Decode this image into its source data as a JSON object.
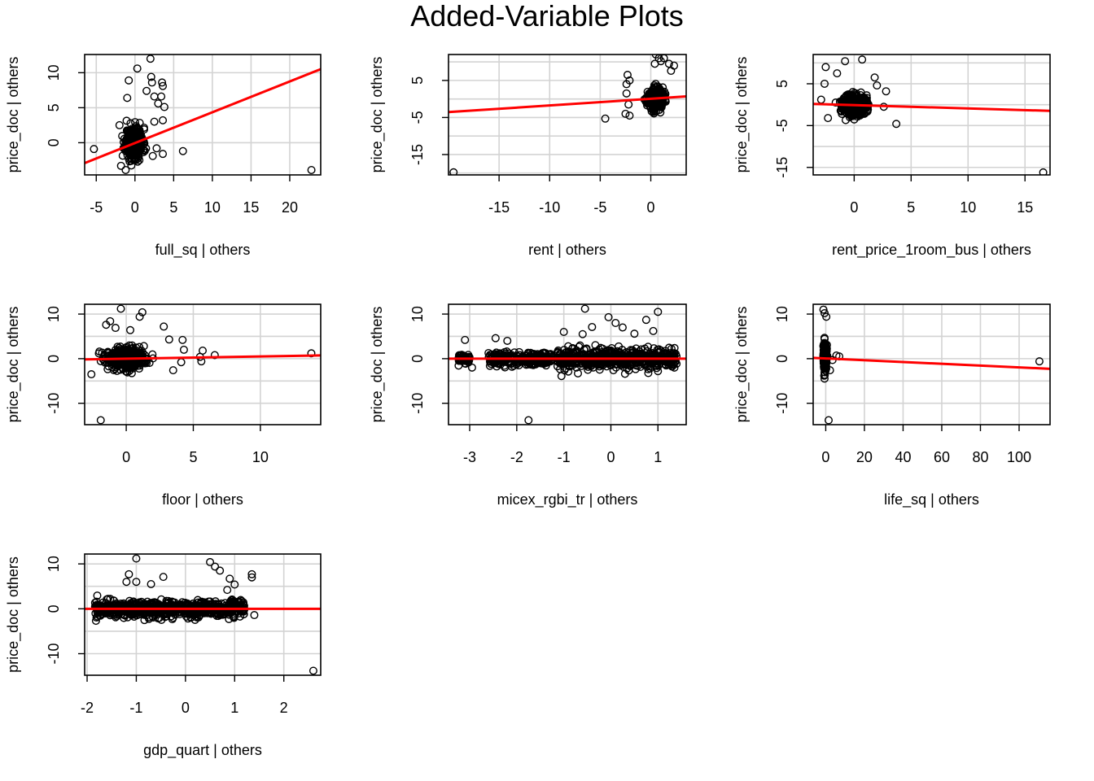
{
  "title": "Added-Variable Plots",
  "colors": {
    "fit_line": "#ff0000",
    "points": "#000000",
    "grid": "#d3d3d3",
    "axis": "#000000"
  },
  "chart_data": [
    {
      "type": "scatter",
      "xlabel": "full_sq | others",
      "ylabel": "price_doc  | others",
      "xlim": [
        -6.5,
        24
      ],
      "ylim": [
        -4.6,
        12.6
      ],
      "xticks": [
        -5,
        0,
        5,
        10,
        15,
        20
      ],
      "xtick_labels": [
        "-5",
        "0",
        "5",
        "10",
        "15",
        "20"
      ],
      "yticks": [
        0,
        5,
        10
      ],
      "ytick_labels": [
        "0",
        "5",
        "10"
      ],
      "grid": true,
      "fit_line": {
        "slope": 0.44,
        "intercept": -0.05
      },
      "cluster": {
        "x_center": -0.1,
        "x_spread": 1.0,
        "y_center": 0.0,
        "y_spread": 1.8,
        "count": 420,
        "seed": 11
      },
      "points": [
        [
          -5.3,
          -0.9
        ],
        [
          22.8,
          -3.9
        ],
        [
          6.2,
          -1.2
        ],
        [
          2.0,
          12.0
        ],
        [
          0.3,
          10.6
        ],
        [
          2.1,
          9.4
        ],
        [
          -0.8,
          8.9
        ],
        [
          3.5,
          8.6
        ],
        [
          3.6,
          8.1
        ],
        [
          2.2,
          8.6
        ],
        [
          3.4,
          6.6
        ],
        [
          3.8,
          5.1
        ],
        [
          3.6,
          3.2
        ],
        [
          3.6,
          -1.6
        ],
        [
          2.3,
          -1.9
        ],
        [
          2.5,
          6.6
        ],
        [
          -1.8,
          -3.3
        ],
        [
          -1.2,
          -3.9
        ],
        [
          1.5,
          7.4
        ],
        [
          -1.0,
          6.4
        ],
        [
          3.0,
          5.6
        ],
        [
          -2.0,
          2.5
        ],
        [
          2.8,
          -0.8
        ],
        [
          2.5,
          3.0
        ]
      ]
    },
    {
      "type": "scatter",
      "xlabel": "rent | others",
      "ylabel": "price_doc  | others",
      "xlim": [
        -20,
        3.5
      ],
      "ylim": [
        -20.5,
        12
      ],
      "xticks": [
        -15,
        -10,
        -5,
        0
      ],
      "xtick_labels": [
        "-15",
        "-10",
        "-5",
        "0"
      ],
      "yticks": [
        5,
        -5,
        -15
      ],
      "ytick_labels": [
        "5",
        "-5",
        "-15"
      ],
      "grid": true,
      "grid_y": [
        10,
        5,
        0,
        -5,
        -10,
        -15,
        -20
      ],
      "fit_line": {
        "slope": 0.18,
        "intercept": 0.05
      },
      "cluster": {
        "x_center": 0.5,
        "x_spread": 0.7,
        "y_center": 0.0,
        "y_spread": 2.2,
        "count": 380,
        "seed": 23
      },
      "points": [
        [
          -19.5,
          -19.8
        ],
        [
          -4.5,
          -5.3
        ],
        [
          -2.3,
          6.5
        ],
        [
          -2.1,
          5.0
        ],
        [
          -2.4,
          4.0
        ],
        [
          0.8,
          11.0
        ],
        [
          0.5,
          12.0
        ],
        [
          1.3,
          11.0
        ],
        [
          1.8,
          9.5
        ],
        [
          2.3,
          9.0
        ],
        [
          -2.5,
          -4.0
        ],
        [
          -2.1,
          -4.5
        ],
        [
          -2.4,
          1.5
        ],
        [
          -2.2,
          -1.5
        ],
        [
          0.4,
          9.5
        ],
        [
          1.0,
          10.2
        ],
        [
          2.0,
          7.6
        ]
      ]
    },
    {
      "type": "scatter",
      "xlabel": "rent_price_1room_bus | others",
      "ylabel": "price_doc  | others",
      "xlim": [
        -3.6,
        17.2
      ],
      "ylim": [
        -16.8,
        12
      ],
      "xticks": [
        0,
        5,
        10,
        15
      ],
      "xtick_labels": [
        "0",
        "5",
        "10",
        "15"
      ],
      "yticks": [
        5,
        -5,
        -15
      ],
      "ytick_labels": [
        "5",
        "-5",
        "-15"
      ],
      "grid": true,
      "grid_y": [
        10,
        5,
        0,
        -5,
        -10,
        -15
      ],
      "fit_line": {
        "slope": -0.08,
        "intercept": -0.1
      },
      "cluster": {
        "x_center": 0.0,
        "x_spread": 0.95,
        "y_center": 0.0,
        "y_spread": 2.1,
        "count": 420,
        "seed": 37
      },
      "points": [
        [
          16.6,
          -16.2
        ],
        [
          3.7,
          -4.6
        ],
        [
          -2.5,
          9.0
        ],
        [
          -0.8,
          10.4
        ],
        [
          0.7,
          10.8
        ],
        [
          1.8,
          6.5
        ],
        [
          2.8,
          3.2
        ],
        [
          -2.6,
          5.0
        ],
        [
          -2.9,
          1.2
        ],
        [
          2.6,
          -0.5
        ],
        [
          -2.3,
          -3.2
        ],
        [
          2.0,
          4.6
        ],
        [
          -1.5,
          7.5
        ]
      ]
    },
    {
      "type": "scatter",
      "xlabel": "floor | others",
      "ylabel": "price_doc  | others",
      "xlim": [
        -3.1,
        14.5
      ],
      "ylim": [
        -14.8,
        12.2
      ],
      "xticks": [
        0,
        5,
        10
      ],
      "xtick_labels": [
        "0",
        "5",
        "10"
      ],
      "yticks": [
        10,
        0,
        -10
      ],
      "ytick_labels": [
        "10",
        "0",
        "-10"
      ],
      "grid": true,
      "grid_y": [
        10,
        5,
        0,
        -5,
        -10
      ],
      "fit_line": {
        "slope": 0.05,
        "intercept": 0.0
      },
      "cluster": {
        "x_center": 0.0,
        "x_spread": 1.3,
        "y_center": 0.0,
        "y_spread": 1.8,
        "count": 520,
        "seed": 53
      },
      "points": [
        [
          13.8,
          1.2
        ],
        [
          -1.9,
          -13.8
        ],
        [
          -0.4,
          11.2
        ],
        [
          1.2,
          10.4
        ],
        [
          1.0,
          9.4
        ],
        [
          -1.2,
          8.4
        ],
        [
          2.8,
          7.2
        ],
        [
          3.2,
          4.3
        ],
        [
          4.2,
          4.2
        ],
        [
          4.3,
          2.0
        ],
        [
          4.1,
          -0.8
        ],
        [
          5.6,
          -0.6
        ],
        [
          5.7,
          1.8
        ],
        [
          6.6,
          0.8
        ],
        [
          5.5,
          0.4
        ],
        [
          3.5,
          -2.6
        ],
        [
          -2.6,
          -3.5
        ],
        [
          -2.0,
          1.6
        ],
        [
          -1.5,
          7.6
        ],
        [
          -0.8,
          6.9
        ],
        [
          0.3,
          6.4
        ]
      ]
    },
    {
      "type": "scatter",
      "xlabel": "micex_rgbi_tr | others",
      "ylabel": "price_doc  | others",
      "xlim": [
        -3.45,
        1.6
      ],
      "ylim": [
        -14.8,
        12.2
      ],
      "xticks": [
        -3,
        -2,
        -1,
        0,
        1
      ],
      "xtick_labels": [
        "-3",
        "-2",
        "-1",
        "0",
        "1"
      ],
      "yticks": [
        10,
        0,
        -10
      ],
      "ytick_labels": [
        "10",
        "0",
        "-10"
      ],
      "grid": true,
      "grid_y": [
        10,
        5,
        0,
        -5,
        -10
      ],
      "fit_line": {
        "slope": 0.0,
        "intercept": 0.0
      },
      "bands": [
        {
          "x_min": -3.25,
          "x_max": -3.0,
          "y_spread": 1.0,
          "count": 50
        },
        {
          "x_min": -2.6,
          "x_max": -1.25,
          "y_spread": 1.2,
          "count": 260
        },
        {
          "x_min": -1.15,
          "x_max": 1.4,
          "y_spread": 1.7,
          "count": 620
        }
      ],
      "band_seed": 71,
      "points": [
        [
          -1.75,
          -13.8
        ],
        [
          -0.55,
          11.2
        ],
        [
          -0.05,
          9.3
        ],
        [
          0.1,
          8.0
        ],
        [
          0.25,
          7.0
        ],
        [
          -0.4,
          7.1
        ],
        [
          1.0,
          10.5
        ],
        [
          0.75,
          8.7
        ],
        [
          0.9,
          6.2
        ],
        [
          -1.0,
          6.0
        ],
        [
          -3.1,
          4.2
        ],
        [
          -2.45,
          4.6
        ],
        [
          -2.2,
          4.0
        ],
        [
          -0.6,
          5.5
        ],
        [
          0.5,
          5.6
        ],
        [
          1.0,
          -2.8
        ],
        [
          -1.05,
          -3.9
        ],
        [
          -2.95,
          -2.0
        ],
        [
          1.3,
          1.0
        ],
        [
          0.3,
          -3.4
        ],
        [
          -0.7,
          -3.3
        ]
      ]
    },
    {
      "type": "scatter",
      "xlabel": "life_sq | others",
      "ylabel": "price_doc  | others",
      "xlim": [
        -6.5,
        116
      ],
      "ylim": [
        -14.8,
        12.2
      ],
      "xticks": [
        0,
        20,
        40,
        60,
        80,
        100
      ],
      "xtick_labels": [
        "0",
        "20",
        "40",
        "60",
        "80",
        "100"
      ],
      "yticks": [
        10,
        0,
        -10
      ],
      "ytick_labels": [
        "10",
        "0",
        "-10"
      ],
      "grid": true,
      "grid_y": [
        10,
        5,
        0,
        -5,
        -10
      ],
      "fit_line": {
        "slope": -0.02,
        "intercept": 0.05
      },
      "cluster": {
        "x_center": -0.3,
        "x_spread": 0.7,
        "y_center": 0.5,
        "y_spread": 2.3,
        "count": 300,
        "seed": 89
      },
      "points": [
        [
          110.5,
          -0.6
        ],
        [
          1.5,
          -13.8
        ],
        [
          -1.2,
          11.0
        ],
        [
          -0.6,
          10.2
        ],
        [
          0.3,
          9.4
        ],
        [
          5.5,
          0.7
        ],
        [
          3.5,
          -0.3
        ],
        [
          7.0,
          0.5
        ],
        [
          2.2,
          -2.6
        ],
        [
          -0.8,
          -3.8
        ]
      ]
    },
    {
      "type": "scatter",
      "xlabel": "gdp_quart | others",
      "ylabel": "price_doc  | others",
      "xlim": [
        -2.05,
        2.75
      ],
      "ylim": [
        -14.8,
        12.2
      ],
      "xticks": [
        -2,
        -1,
        0,
        1,
        2
      ],
      "xtick_labels": [
        "-2",
        "-1",
        "0",
        "1",
        "2"
      ],
      "yticks": [
        10,
        0,
        -10
      ],
      "ytick_labels": [
        "10",
        "0",
        "-10"
      ],
      "grid": true,
      "grid_y": [
        10,
        5,
        0,
        -5,
        -10
      ],
      "fit_line": {
        "slope": 0.0,
        "intercept": 0.0
      },
      "bands": [
        {
          "x_min": -1.85,
          "x_max": 1.2,
          "y_spread": 1.6,
          "count": 700
        }
      ],
      "band_seed": 97,
      "points": [
        [
          2.6,
          -13.8
        ],
        [
          -1.0,
          11.2
        ],
        [
          0.5,
          10.4
        ],
        [
          0.6,
          9.4
        ],
        [
          0.7,
          8.5
        ],
        [
          0.9,
          6.7
        ],
        [
          1.0,
          5.4
        ],
        [
          1.35,
          7.7
        ],
        [
          1.35,
          7.0
        ],
        [
          -1.15,
          7.7
        ],
        [
          -1.0,
          6.0
        ],
        [
          -1.2,
          6.0
        ],
        [
          -0.7,
          5.5
        ],
        [
          -0.45,
          7.1
        ],
        [
          0.85,
          4.2
        ],
        [
          1.4,
          -1.4
        ],
        [
          -1.6,
          2.1
        ],
        [
          -1.75,
          -1.5
        ]
      ]
    }
  ]
}
